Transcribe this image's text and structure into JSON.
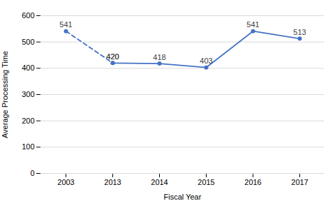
{
  "chart_data": {
    "type": "line",
    "xlabel": "Fiscal Year",
    "ylabel": "Average Processing Time",
    "categories": [
      "2003",
      "2013",
      "2014",
      "2015",
      "2016",
      "2017"
    ],
    "series": [
      {
        "color": "#4472C4",
        "line_style": "dashed",
        "values": [
          541,
          420,
          null,
          null,
          null,
          null
        ]
      },
      {
        "color": "#4472C4",
        "line_style": "solid",
        "values": [
          null,
          420,
          418,
          403,
          541,
          513
        ]
      }
    ],
    "marker": "circle",
    "data_labels": true,
    "ylim": [
      0,
      600
    ],
    "yticks": [
      0,
      100,
      200,
      300,
      400,
      500,
      600
    ],
    "grid": true
  }
}
